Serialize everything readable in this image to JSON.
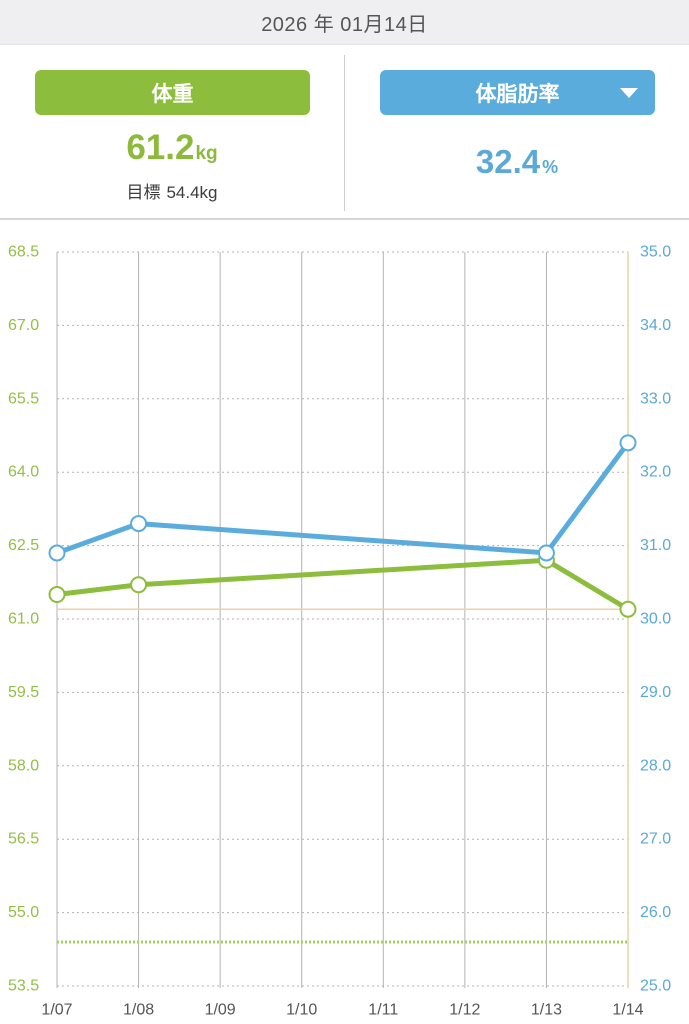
{
  "header": {
    "date": "2026 年 01月14日"
  },
  "weight": {
    "button_label": "体重",
    "value": "61.2",
    "unit": "kg",
    "goal_label": "目標",
    "goal_value": "54.4kg"
  },
  "body_fat": {
    "button_label": "体脂肪率",
    "value": "32.4",
    "unit": "%",
    "dropdown_icon": "caret-down-icon"
  },
  "colors": {
    "weight": "#8dbd3c",
    "body_fat": "#5aacdc",
    "left_axis_text": "#94bf45",
    "right_axis_text": "#5aa9d6",
    "x_axis_text": "#555555",
    "grid": "#b3b3b3",
    "current_weight_line": "#efcfa8",
    "goal_line": "#a6d15c"
  },
  "chart_data": {
    "type": "line",
    "x": [
      "1/07",
      "1/08",
      "1/09",
      "1/10",
      "1/11",
      "1/12",
      "1/13",
      "1/14"
    ],
    "series": [
      {
        "secondary_axis": false,
        "color": "#8dbd3c",
        "points": [
          [
            "1/07",
            61.5
          ],
          [
            "1/08",
            61.7
          ],
          [
            "1/13",
            62.2
          ],
          [
            "1/14",
            61.2
          ]
        ]
      },
      {
        "secondary_axis": true,
        "color": "#5aacdc",
        "points": [
          [
            "1/07",
            30.9
          ],
          [
            "1/08",
            31.3
          ],
          [
            "1/13",
            30.9
          ],
          [
            "1/14",
            32.4
          ]
        ]
      }
    ],
    "y_left": {
      "range": [
        53.5,
        68.5
      ],
      "ticks": [
        "68.5",
        "67.0",
        "65.5",
        "64.0",
        "62.5",
        "61.0",
        "59.5",
        "58.0",
        "56.5",
        "55.0",
        "53.5"
      ]
    },
    "y_right": {
      "range": [
        25.0,
        35.0
      ],
      "ticks": [
        "35.0",
        "34.0",
        "33.0",
        "32.0",
        "31.0",
        "30.0",
        "29.0",
        "28.0",
        "27.0",
        "26.0",
        "25.0"
      ]
    },
    "reference_lines": [
      {
        "value": 61.2,
        "dotted": false,
        "color": "#efcfa8"
      },
      {
        "value": 54.4,
        "dotted": true,
        "color": "#a6d15c"
      }
    ],
    "grid": true
  }
}
